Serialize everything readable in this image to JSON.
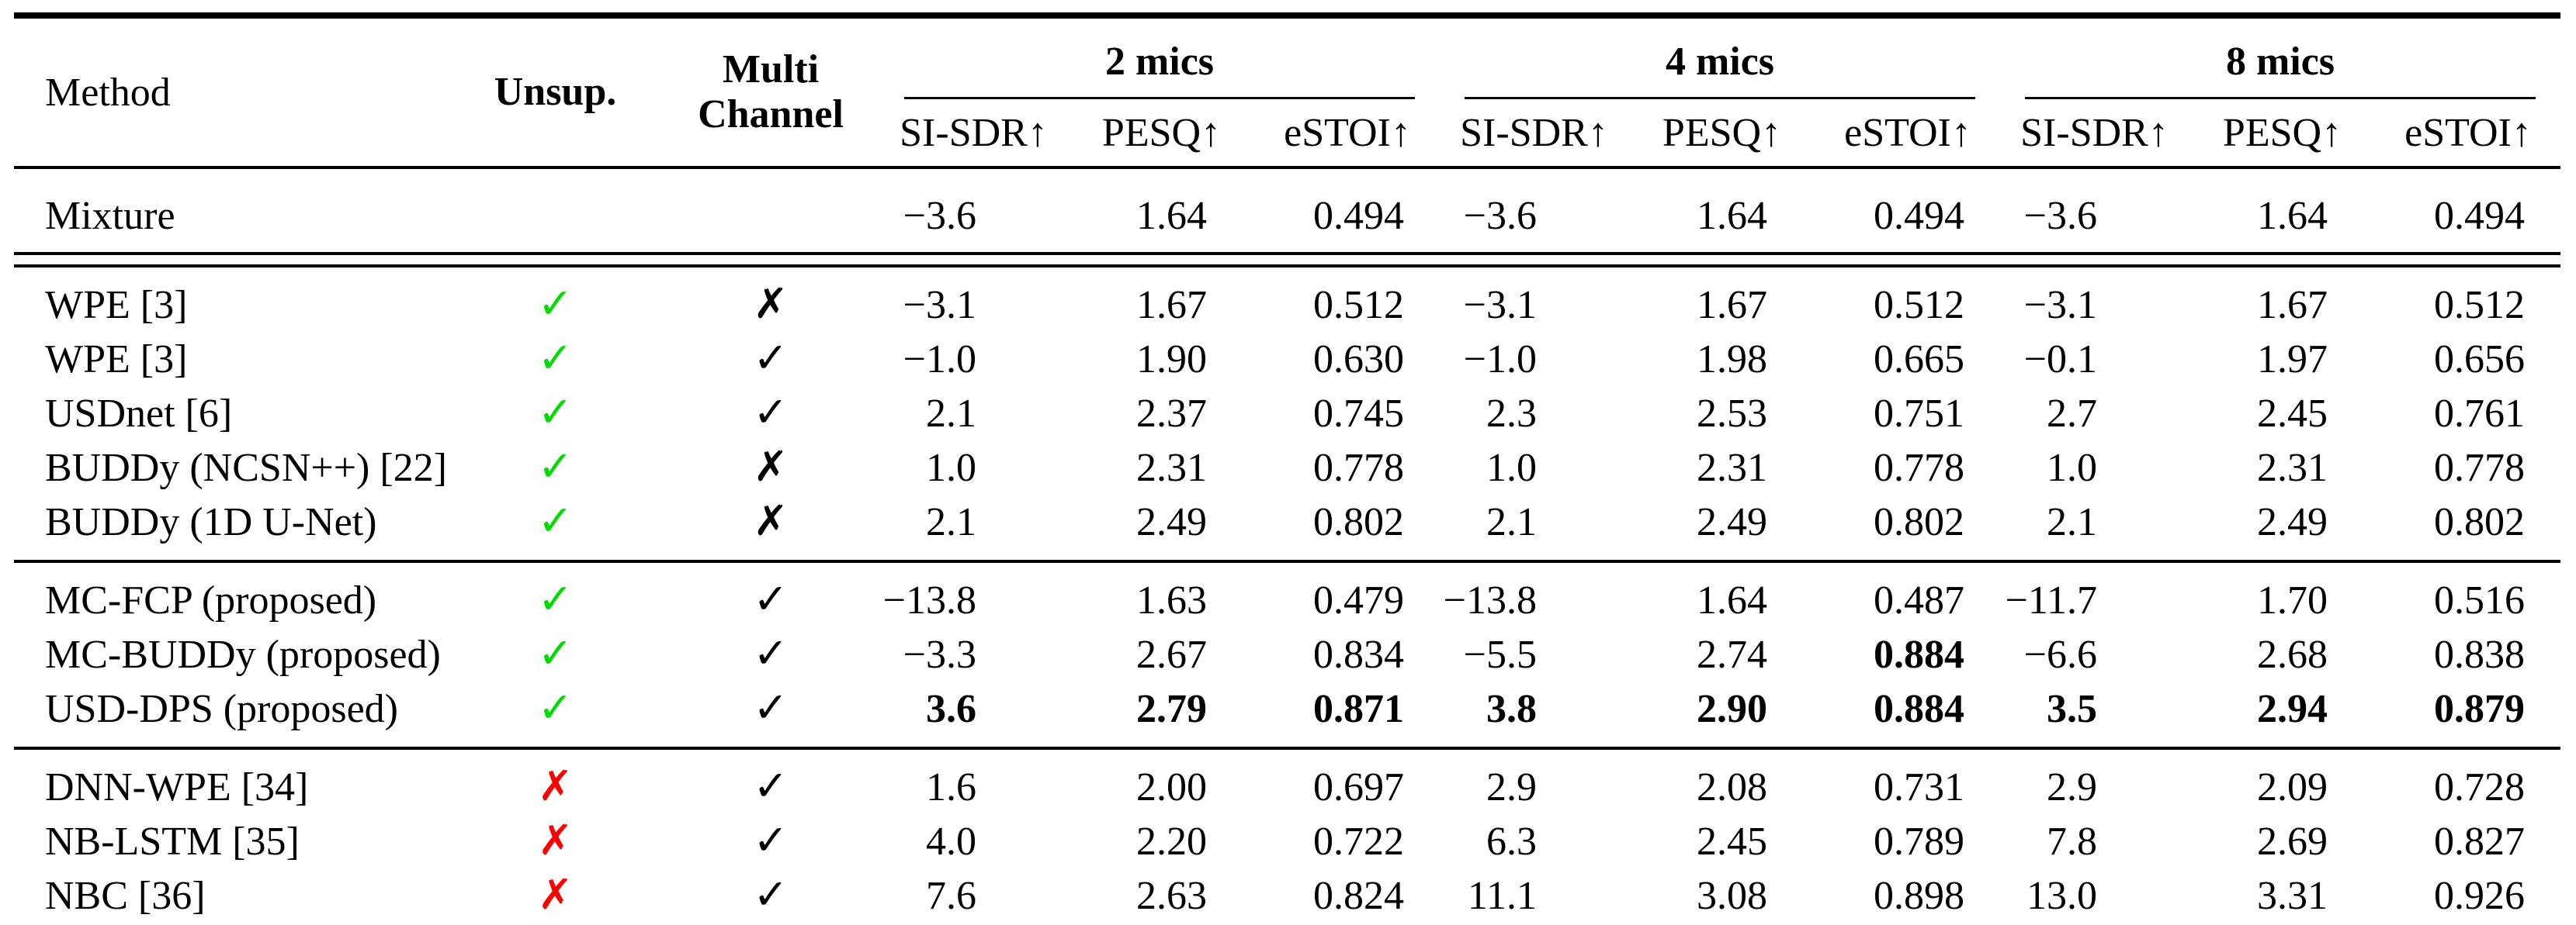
{
  "table": {
    "header": {
      "method": "Method",
      "unsup": "Unsup.",
      "multichannel_line1": "Multi",
      "multichannel_line2": "Channel",
      "groups": [
        "2 mics",
        "4 mics",
        "8 mics"
      ],
      "metrics": [
        "SI-SDR↑",
        "PESQ↑",
        "eSTOI↑"
      ]
    },
    "marks": {
      "check_glyph": "✓",
      "cross_glyph": "✗",
      "green": "#00dc00",
      "red": "#ff0000",
      "black": "#000000"
    },
    "sections": [
      {
        "name": "mixture",
        "rows": [
          {
            "method": "Mixture",
            "unsup": null,
            "mc": null,
            "values": [
              "−3.6",
              "1.64",
              "0.494",
              "−3.6",
              "1.64",
              "0.494",
              "−3.6",
              "1.64",
              "0.494"
            ],
            "bold": []
          }
        ]
      },
      {
        "name": "unsupervised-baselines",
        "rows": [
          {
            "method": "WPE [3]",
            "unsup": "check-green",
            "mc": "cross-black",
            "values": [
              "−3.1",
              "1.67",
              "0.512",
              "−3.1",
              "1.67",
              "0.512",
              "−3.1",
              "1.67",
              "0.512"
            ],
            "bold": []
          },
          {
            "method": "WPE [3]",
            "unsup": "check-green",
            "mc": "check-black",
            "values": [
              "−1.0",
              "1.90",
              "0.630",
              "−1.0",
              "1.98",
              "0.665",
              "−0.1",
              "1.97",
              "0.656"
            ],
            "bold": []
          },
          {
            "method": "USDnet [6]",
            "unsup": "check-green",
            "mc": "check-black",
            "values": [
              "2.1",
              "2.37",
              "0.745",
              "2.3",
              "2.53",
              "0.751",
              "2.7",
              "2.45",
              "0.761"
            ],
            "bold": []
          },
          {
            "method": "BUDDy (NCSN++) [22]",
            "unsup": "check-green",
            "mc": "cross-black",
            "values": [
              "1.0",
              "2.31",
              "0.778",
              "1.0",
              "2.31",
              "0.778",
              "1.0",
              "2.31",
              "0.778"
            ],
            "bold": []
          },
          {
            "method": "BUDDy (1D U-Net)",
            "unsup": "check-green",
            "mc": "cross-black",
            "values": [
              "2.1",
              "2.49",
              "0.802",
              "2.1",
              "2.49",
              "0.802",
              "2.1",
              "2.49",
              "0.802"
            ],
            "bold": []
          }
        ]
      },
      {
        "name": "proposed-methods",
        "rows": [
          {
            "method": "MC-FCP (proposed)",
            "unsup": "check-green",
            "mc": "check-black",
            "values": [
              "−13.8",
              "1.63",
              "0.479",
              "−13.8",
              "1.64",
              "0.487",
              "−11.7",
              "1.70",
              "0.516"
            ],
            "bold": []
          },
          {
            "method": "MC-BUDDy (proposed)",
            "unsup": "check-green",
            "mc": "check-black",
            "values": [
              "−3.3",
              "2.67",
              "0.834",
              "−5.5",
              "2.74",
              "0.884",
              "−6.6",
              "2.68",
              "0.838"
            ],
            "bold": [
              5
            ]
          },
          {
            "method": "USD-DPS (proposed)",
            "unsup": "check-green",
            "mc": "check-black",
            "values": [
              "3.6",
              "2.79",
              "0.871",
              "3.8",
              "2.90",
              "0.884",
              "3.5",
              "2.94",
              "0.879"
            ],
            "bold": [
              0,
              1,
              2,
              3,
              4,
              5,
              6,
              7,
              8
            ]
          }
        ]
      },
      {
        "name": "supervised-baselines",
        "rows": [
          {
            "method": "DNN-WPE [34]",
            "unsup": "cross-red",
            "mc": "check-black",
            "values": [
              "1.6",
              "2.00",
              "0.697",
              "2.9",
              "2.08",
              "0.731",
              "2.9",
              "2.09",
              "0.728"
            ],
            "bold": []
          },
          {
            "method": "NB-LSTM [35]",
            "unsup": "cross-red",
            "mc": "check-black",
            "values": [
              "4.0",
              "2.20",
              "0.722",
              "6.3",
              "2.45",
              "0.789",
              "7.8",
              "2.69",
              "0.827"
            ],
            "bold": []
          },
          {
            "method": "NBC [36]",
            "unsup": "cross-red",
            "mc": "check-black",
            "values": [
              "7.6",
              "2.63",
              "0.824",
              "11.1",
              "3.08",
              "0.898",
              "13.0",
              "3.31",
              "0.926"
            ],
            "bold": []
          }
        ]
      }
    ]
  }
}
